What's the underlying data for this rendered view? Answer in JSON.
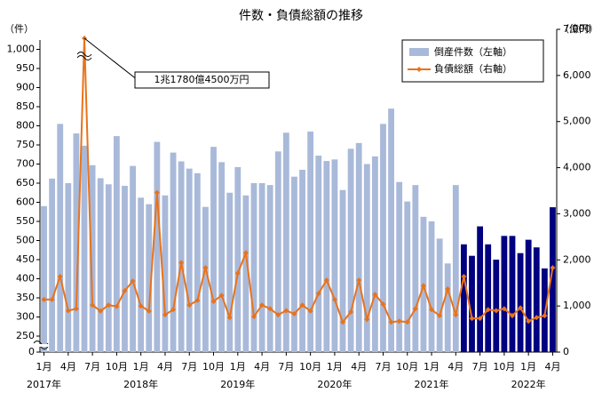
{
  "chart_data": {
    "type": "bar_line",
    "title": "件数・負債総額の推移",
    "y_label": "（件）",
    "y2_label": "（億円）",
    "categories": [
      "1月",
      null,
      null,
      "4月",
      null,
      null,
      "7月",
      null,
      null,
      "10月",
      null,
      null,
      "1月",
      null,
      null,
      "4月",
      null,
      null,
      "7月",
      null,
      null,
      "10月",
      null,
      null,
      "1月",
      null,
      null,
      "4月",
      null,
      null,
      "7月",
      null,
      null,
      "10月",
      null,
      null,
      "1月",
      null,
      null,
      "4月",
      null,
      null,
      "7月",
      null,
      null,
      "10月",
      null,
      null,
      "1月",
      null,
      null,
      "4月",
      null,
      null,
      "7月",
      null,
      null,
      "10月",
      null,
      null,
      "1月",
      null,
      null,
      "4月"
    ],
    "years": [
      "2017年",
      null,
      null,
      null,
      null,
      null,
      null,
      null,
      null,
      null,
      null,
      null,
      "2018年",
      null,
      null,
      null,
      null,
      null,
      null,
      null,
      null,
      null,
      null,
      null,
      "2019年",
      null,
      null,
      null,
      null,
      null,
      null,
      null,
      null,
      null,
      null,
      null,
      "2020年",
      null,
      null,
      null,
      null,
      null,
      null,
      null,
      null,
      null,
      null,
      null,
      "2021年",
      null,
      null,
      null,
      null,
      null,
      null,
      null,
      null,
      null,
      null,
      null,
      "2022年",
      null,
      null,
      null
    ],
    "series": [
      {
        "name": "倒産件数（左軸）",
        "color": "#a9b9d9",
        "colors": [
          "#a9b9d9",
          "#a9b9d9",
          "#a9b9d9",
          "#a9b9d9",
          "#a9b9d9",
          "#a9b9d9",
          "#a9b9d9",
          "#a9b9d9",
          "#a9b9d9",
          "#a9b9d9",
          "#a9b9d9",
          "#a9b9d9",
          "#a9b9d9",
          "#a9b9d9",
          "#a9b9d9",
          "#a9b9d9",
          "#a9b9d9",
          "#a9b9d9",
          "#a9b9d9",
          "#a9b9d9",
          "#a9b9d9",
          "#a9b9d9",
          "#a9b9d9",
          "#a9b9d9",
          "#a9b9d9",
          "#a9b9d9",
          "#a9b9d9",
          "#a9b9d9",
          "#a9b9d9",
          "#a9b9d9",
          "#a9b9d9",
          "#a9b9d9",
          "#a9b9d9",
          "#a9b9d9",
          "#a9b9d9",
          "#a9b9d9",
          "#a9b9d9",
          "#a9b9d9",
          "#a9b9d9",
          "#a9b9d9",
          "#a9b9d9",
          "#a9b9d9",
          "#a9b9d9",
          "#a9b9d9",
          "#a9b9d9",
          "#a9b9d9",
          "#a9b9d9",
          "#a9b9d9",
          "#a9b9d9",
          "#a9b9d9",
          "#a9b9d9",
          "#a9b9d9",
          "#000080",
          "#000080",
          "#000080",
          "#000080",
          "#000080",
          "#000080",
          "#000080",
          "#000080",
          "#000080",
          "#000080",
          "#000080",
          "#000080"
        ],
        "values": [
          590,
          662,
          805,
          650,
          780,
          748,
          697,
          663,
          647,
          773,
          643,
          695,
          612,
          595,
          758,
          618,
          730,
          707,
          688,
          676,
          588,
          745,
          705,
          625,
          692,
          618,
          650,
          650,
          645,
          733,
          782,
          667,
          685,
          785,
          722,
          708,
          712,
          632,
          740,
          755,
          700,
          720,
          805,
          845,
          653,
          602,
          645,
          562,
          550,
          505,
          440,
          645,
          490,
          460,
          537,
          490,
          450,
          512,
          512,
          467,
          502,
          482,
          427,
          587
        ]
      },
      {
        "name": "負債総額（右軸）",
        "color": "#e8731c",
        "axis": "y2",
        "values": [
          1140,
          1140,
          1640,
          900,
          940,
          11780.45,
          1020,
          890,
          1020,
          990,
          1330,
          1540,
          1000,
          890,
          3460,
          810,
          920,
          1940,
          1020,
          1120,
          1830,
          1100,
          1230,
          750,
          1710,
          2150,
          770,
          1020,
          940,
          810,
          900,
          830,
          1020,
          890,
          1270,
          1560,
          1140,
          650,
          870,
          1560,
          710,
          1250,
          1040,
          650,
          670,
          650,
          940,
          1440,
          920,
          790,
          1370,
          810,
          1640,
          730,
          730,
          920,
          900,
          940,
          790,
          960,
          670,
          750,
          790,
          1830
        ]
      }
    ],
    "annotation": "1兆1780億4500万円",
    "ylim": [
      0,
      1000
    ],
    "ybreak": [
      0,
      250
    ],
    "yticks": [
      0,
      250,
      300,
      350,
      400,
      450,
      500,
      550,
      600,
      650,
      700,
      750,
      800,
      850,
      900,
      950,
      {
        "value": 1000,
        "label": "1,000"
      }
    ],
    "y2lim": [
      0,
      7000
    ],
    "y2ticks": [
      0,
      {
        "value": 1000,
        "label": "1,000"
      },
      {
        "value": 2000,
        "label": "2,000"
      },
      {
        "value": 3000,
        "label": "3,000"
      },
      {
        "value": 4000,
        "label": "4,000"
      },
      {
        "value": 5000,
        "label": "5,000"
      },
      {
        "value": 6000,
        "label": "6,000"
      },
      {
        "value": 7000,
        "label": "7,000"
      }
    ],
    "legend": "upper right",
    "grid": false
  }
}
